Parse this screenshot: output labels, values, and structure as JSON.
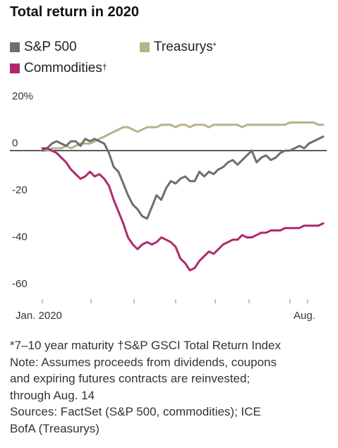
{
  "header": {
    "title": "Total return in 2020"
  },
  "chart_data": {
    "type": "line",
    "title": "Total return in 2020",
    "ylim": [
      -60,
      20
    ],
    "y_ticks": [
      {
        "value": 20,
        "label": "20%"
      },
      {
        "value": 0,
        "label": "0"
      },
      {
        "value": -20,
        "label": "-20"
      },
      {
        "value": -40,
        "label": "-40"
      },
      {
        "value": -60,
        "label": "-60"
      }
    ],
    "x_tick_labels": [
      "Jan. 2020",
      "Aug."
    ],
    "grid": false,
    "legend_position": "top",
    "x_start_label": "Jan. 2020",
    "x_end_label": "Aug. 14",
    "series": [
      {
        "name": "S&P 500",
        "marker": "",
        "color": "#6d6e71",
        "values": [
          0,
          1,
          3,
          4,
          3,
          2,
          4,
          4,
          2,
          5,
          4,
          5,
          4,
          3,
          -1,
          -7,
          -9,
          -14,
          -19,
          -23,
          -25,
          -28,
          -29,
          -24,
          -19,
          -21,
          -16,
          -13,
          -14,
          -12,
          -11,
          -13,
          -13,
          -9,
          -11,
          -9,
          -10,
          -8,
          -7,
          -5,
          -4,
          -6,
          -4,
          -2,
          0,
          -5,
          -3,
          -2,
          -4,
          -3,
          -1,
          0,
          0,
          1,
          2,
          1,
          3,
          4,
          5,
          6
        ]
      },
      {
        "name": "Treasurys",
        "marker": "*",
        "color": "#bab287",
        "values": [
          0,
          0,
          1,
          1,
          1,
          2,
          1,
          2,
          3,
          3,
          3,
          4,
          5,
          6,
          7,
          8,
          9,
          10,
          10,
          9,
          8,
          9,
          10,
          10,
          10,
          11,
          11,
          11,
          10,
          11,
          11,
          10,
          11,
          11,
          11,
          10,
          11,
          11,
          11,
          11,
          11,
          11,
          10,
          11,
          11,
          11,
          11,
          11,
          11,
          11,
          11,
          11,
          12,
          12,
          12,
          12,
          12,
          12,
          11,
          11
        ]
      },
      {
        "name": "Commodities",
        "marker": "†",
        "color": "#b0296b",
        "values": [
          1,
          1,
          0,
          -1,
          -3,
          -5,
          -8,
          -10,
          -12,
          -11,
          -9,
          -11,
          -10,
          -12,
          -15,
          -21,
          -26,
          -31,
          -37,
          -40,
          -42,
          -40,
          -39,
          -40,
          -39,
          -37,
          -38,
          -39,
          -41,
          -46,
          -48,
          -51,
          -50,
          -47,
          -45,
          -43,
          -44,
          -42,
          -40,
          -39,
          -38,
          -38,
          -36,
          -37,
          -37,
          -36,
          -35,
          -35,
          -34,
          -34,
          -34,
          -33,
          -33,
          -33,
          -33,
          -32,
          -32,
          -32,
          -32,
          -31
        ]
      }
    ]
  },
  "notes": {
    "footnote_line1": "*7–10 year maturity †S&P GSCI Total Return Index",
    "note_line1": "Note: Assumes proceeds from dividends, coupons",
    "note_line2": "and expiring futures contracts are reinvested;",
    "note_line3": "through Aug. 14",
    "sources_line1": "Sources: FactSet (S&P 500, commodities); ICE",
    "sources_line2": "BofA (Treasurys)"
  }
}
